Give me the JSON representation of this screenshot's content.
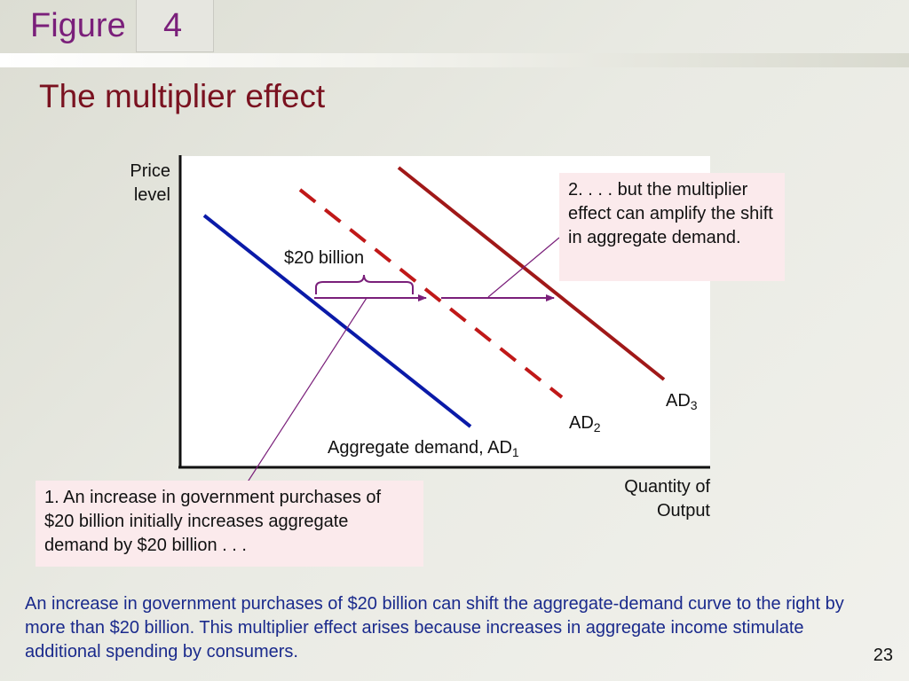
{
  "header": {
    "figure_word": "Figure",
    "figure_number": "4",
    "title": "The multiplier effect"
  },
  "chart": {
    "ylabel_line1": "Price",
    "ylabel_line2": "level",
    "xlabel_line1": "Quantity of",
    "xlabel_line2": "Output",
    "bracket_label": "$20 billion",
    "ad1_label_text": "Aggregate demand, AD",
    "ad1_sub": "1",
    "ad2_label_text": "AD",
    "ad2_sub": "2",
    "ad3_label_text": "AD",
    "ad3_sub": "3",
    "colors": {
      "ad1": "#0a1aa8",
      "ad2": "#c01818",
      "ad3": "#c01818",
      "arrows": "#7a1f7a"
    }
  },
  "callouts": {
    "step1": "1. An increase in government purchases of $20 billion initially increases aggregate demand by $20 billion . . .",
    "step2": "2. . . . but the multiplier effect can amplify the shift in aggregate demand."
  },
  "caption": "An increase in government purchases of $20 billion can shift the aggregate-demand curve to the right by more than $20 billion. This multiplier effect arises because increases in aggregate income stimulate additional spending by consumers.",
  "page_number": "23"
}
